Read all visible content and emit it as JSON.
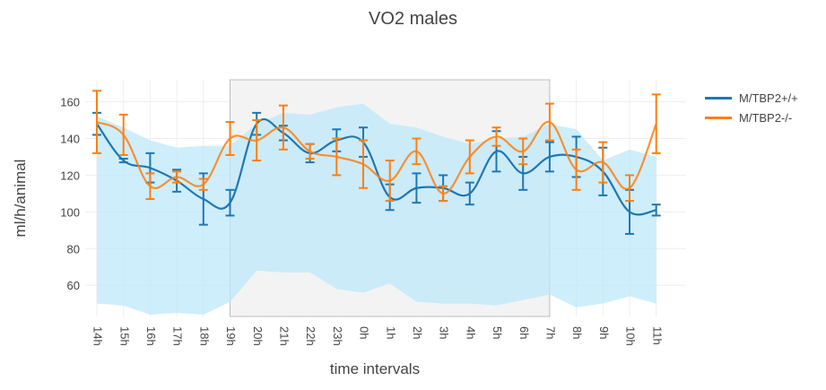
{
  "chart_data": {
    "type": "line",
    "title": "VO2 males",
    "xlabel": "time intervals",
    "ylabel": "ml/h/animal",
    "categories": [
      "14h",
      "15h",
      "16h",
      "17h",
      "18h",
      "19h",
      "20h",
      "21h",
      "22h",
      "23h",
      "0h",
      "1h",
      "2h",
      "3h",
      "4h",
      "5h",
      "6h",
      "7h",
      "8h",
      "9h",
      "10h",
      "11h"
    ],
    "ylim": [
      43,
      172
    ],
    "yticks": [
      60,
      80,
      100,
      120,
      140,
      160
    ],
    "grid": true,
    "legend_position": "top-right",
    "shaded_region": {
      "from": "19h",
      "to": "7h",
      "color": "#f2f2f2"
    },
    "band": {
      "color": "#bde8fb",
      "upper": [
        152,
        146,
        139,
        135,
        136,
        136,
        148,
        154,
        153,
        157,
        159,
        148,
        146,
        141,
        137,
        140,
        141,
        148,
        145,
        128,
        134,
        130
      ],
      "lower": [
        50,
        49,
        44,
        45,
        44,
        51,
        68,
        67,
        67,
        58,
        56,
        61,
        51,
        50,
        50,
        49,
        52,
        55,
        48,
        50,
        54,
        50
      ]
    },
    "series": [
      {
        "name": "M/TBP2+/+",
        "color": "#1f77b4",
        "values": [
          148,
          128,
          124,
          117,
          107,
          105,
          148,
          143,
          132,
          139,
          138,
          108,
          113,
          113,
          110,
          133,
          121,
          130,
          130,
          122,
          100,
          101
        ],
        "error": [
          6,
          1,
          8,
          6,
          14,
          7,
          6,
          4,
          5,
          6,
          8,
          7,
          8,
          7,
          6,
          11,
          9,
          8,
          11,
          13,
          12,
          3
        ]
      },
      {
        "name": "M/TBP2-/-",
        "color": "#ff7f0e",
        "values": [
          149,
          142,
          114,
          119,
          115,
          140,
          139,
          146,
          133,
          130,
          126,
          117,
          133,
          110,
          130,
          141,
          133,
          149,
          123,
          127,
          113,
          148
        ],
        "error": [
          17,
          11,
          7,
          3,
          3,
          9,
          11,
          12,
          4,
          10,
          13,
          11,
          7,
          4,
          9,
          5,
          7,
          10,
          11,
          11,
          7,
          16
        ]
      }
    ]
  }
}
